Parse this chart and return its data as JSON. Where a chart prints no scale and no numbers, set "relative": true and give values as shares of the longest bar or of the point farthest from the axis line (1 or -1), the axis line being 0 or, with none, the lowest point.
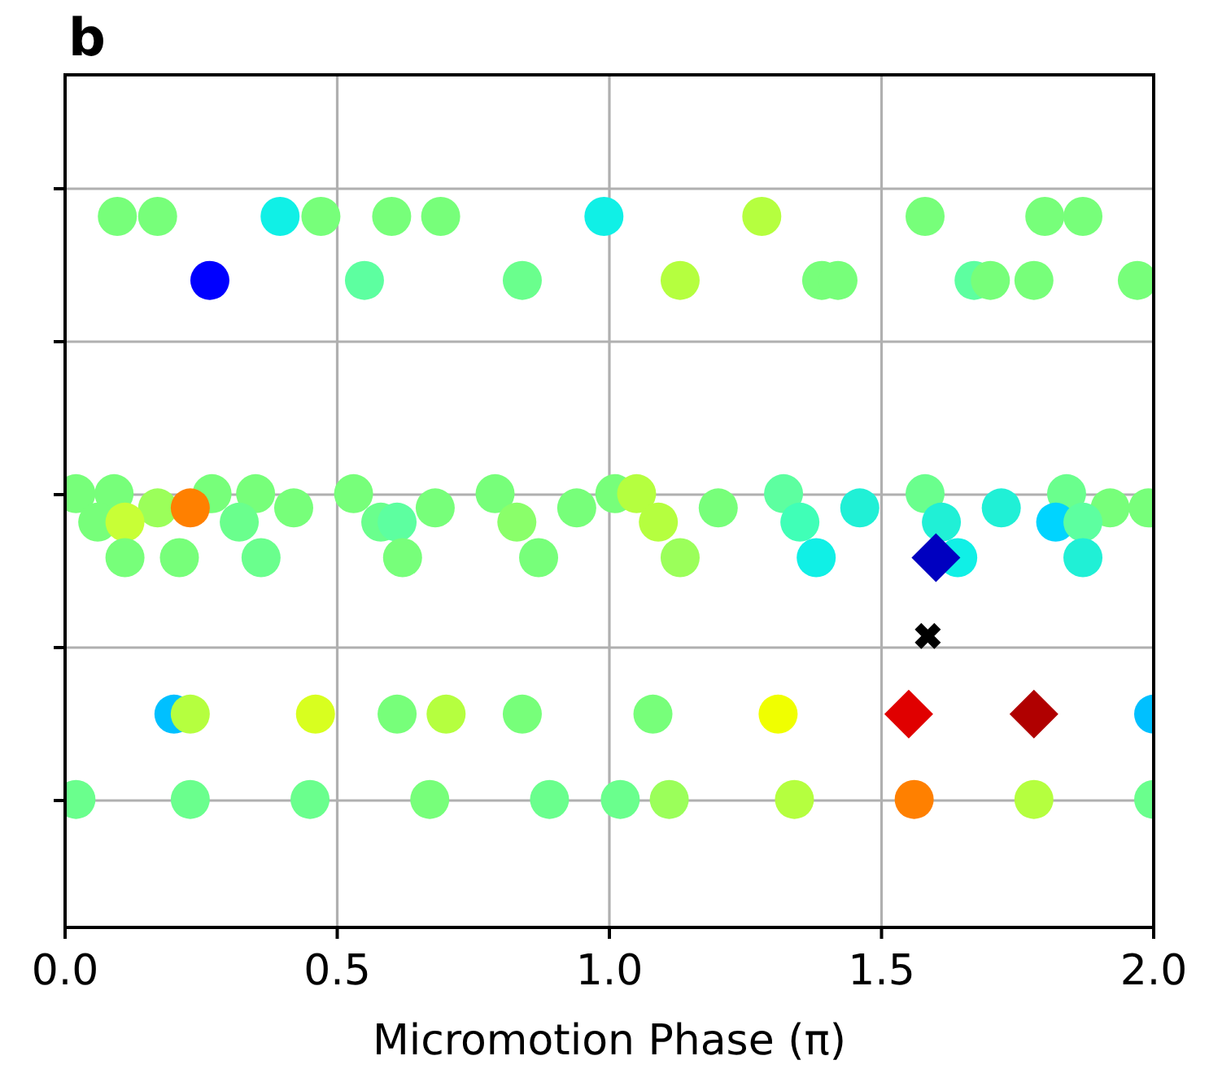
{
  "chart_data": {
    "type": "scatter",
    "title": "b",
    "xlabel": "Micromotion Phase (π)",
    "xlim": [
      0,
      2
    ],
    "xticks": [
      {
        "value": 0,
        "label": "0.0"
      },
      {
        "value": 0.5,
        "label": "0.5"
      },
      {
        "value": 1,
        "label": "1.0"
      },
      {
        "value": 1.5,
        "label": "1.5"
      },
      {
        "value": 2,
        "label": "2.0"
      }
    ],
    "relative": true,
    "grid": true,
    "series": [
      {
        "marker": "circle",
        "x": [
          0.096,
          0.17,
          0.395,
          0.47,
          0.6,
          0.69,
          0.99,
          1.28,
          1.58,
          1.8,
          1.87,
          0.266,
          0.55,
          0.84,
          1.13,
          1.39,
          1.42,
          1.67,
          1.7,
          1.78,
          1.97,
          0.02,
          0.09,
          0.27,
          0.35,
          0.53,
          0.79,
          1.01,
          1.05,
          1.32,
          1.58,
          1.84,
          0.17,
          0.23,
          0.42,
          0.68,
          0.94,
          1.2,
          1.46,
          1.72,
          1.92,
          1.99,
          0.06,
          0.11,
          0.32,
          0.58,
          0.61,
          0.83,
          1.09,
          1.35,
          1.61,
          1.82,
          1.87,
          0.11,
          0.21,
          0.36,
          0.62,
          0.87,
          1.13,
          1.38,
          1.64,
          1.87,
          0.2,
          0.23,
          0.46,
          0.61,
          0.7,
          0.84,
          1.08,
          1.31,
          2.0,
          0.02,
          0.23,
          0.45,
          0.67,
          0.89,
          1.02,
          1.11,
          1.34,
          1.56,
          1.78,
          2.0
        ],
        "values": [
          1,
          1,
          1,
          1,
          1,
          1,
          1,
          1,
          1,
          1,
          1,
          0.91,
          0.91,
          0.91,
          0.91,
          0.91,
          0.91,
          0.91,
          0.91,
          0.91,
          0.91,
          0.61,
          0.61,
          0.61,
          0.61,
          0.61,
          0.61,
          0.61,
          0.61,
          0.61,
          0.61,
          0.61,
          0.59,
          0.59,
          0.59,
          0.59,
          0.59,
          0.59,
          0.59,
          0.59,
          0.59,
          0.59,
          0.57,
          0.57,
          0.57,
          0.57,
          0.57,
          0.57,
          0.57,
          0.57,
          0.57,
          0.57,
          0.57,
          0.52,
          0.52,
          0.52,
          0.52,
          0.52,
          0.52,
          0.52,
          0.52,
          0.52,
          0.3,
          0.3,
          0.3,
          0.3,
          0.3,
          0.3,
          0.3,
          0.3,
          0.3,
          0.18,
          0.18,
          0.18,
          0.18,
          0.18,
          0.18,
          0.18,
          0.18,
          0.18,
          0.18,
          0.18
        ],
        "colors": [
          "#77ff7a",
          "#77ff7a",
          "#10f0e6",
          "#77ff7a",
          "#77ff7a",
          "#77ff7a",
          "#10f0e6",
          "#b5ff3f",
          "#77ff7a",
          "#77ff7a",
          "#77ff7a",
          "#0000ff",
          "#5dffa0",
          "#6aff8d",
          "#b5ff3f",
          "#77ff7a",
          "#77ff7a",
          "#5dffa0",
          "#77ff7a",
          "#77ff7a",
          "#77ff7a",
          "#77ff7a",
          "#77ff7a",
          "#77ff7a",
          "#77ff7a",
          "#77ff7a",
          "#77ff7a",
          "#77ff7a",
          "#b5ff3f",
          "#5dffa0",
          "#6aff8d",
          "#6aff8d",
          "#9bff5a",
          "#ff8000",
          "#77ff7a",
          "#77ff7a",
          "#77ff7a",
          "#77ff7a",
          "#20f0d6",
          "#20f0d6",
          "#77ff7a",
          "#77ff7a",
          "#77ff7a",
          "#c8ff36",
          "#6aff8d",
          "#6aff8d",
          "#5dffa0",
          "#8aff6a",
          "#b5ff3f",
          "#40ffb7",
          "#20f0d6",
          "#00d4ff",
          "#5dffa0",
          "#77ff7a",
          "#77ff7a",
          "#6aff8d",
          "#77ff7a",
          "#77ff7a",
          "#9bff5a",
          "#10f0e6",
          "#10f0e6",
          "#20f0d6",
          "#00c0ff",
          "#b5ff3f",
          "#d8ff1f",
          "#77ff7a",
          "#b5ff3f",
          "#77ff7a",
          "#77ff7a",
          "#f0ff00",
          "#00c0ff",
          "#6aff8d",
          "#6aff8d",
          "#6aff8d",
          "#77ff7a",
          "#6aff8d",
          "#6aff8d",
          "#9bff5a",
          "#b5ff3f",
          "#ff8000",
          "#b5ff3f",
          "#6aff8d"
        ]
      },
      {
        "marker": "diamond",
        "x": [
          1.6,
          1.55,
          1.78
        ],
        "values": [
          0.52,
          0.3,
          0.3
        ],
        "colors": [
          "#0000c0",
          "#e00000",
          "#b00000"
        ]
      },
      {
        "marker": "cross",
        "x": [
          1.585
        ],
        "values": [
          0.41
        ],
        "colors": [
          "#000000"
        ]
      }
    ]
  }
}
